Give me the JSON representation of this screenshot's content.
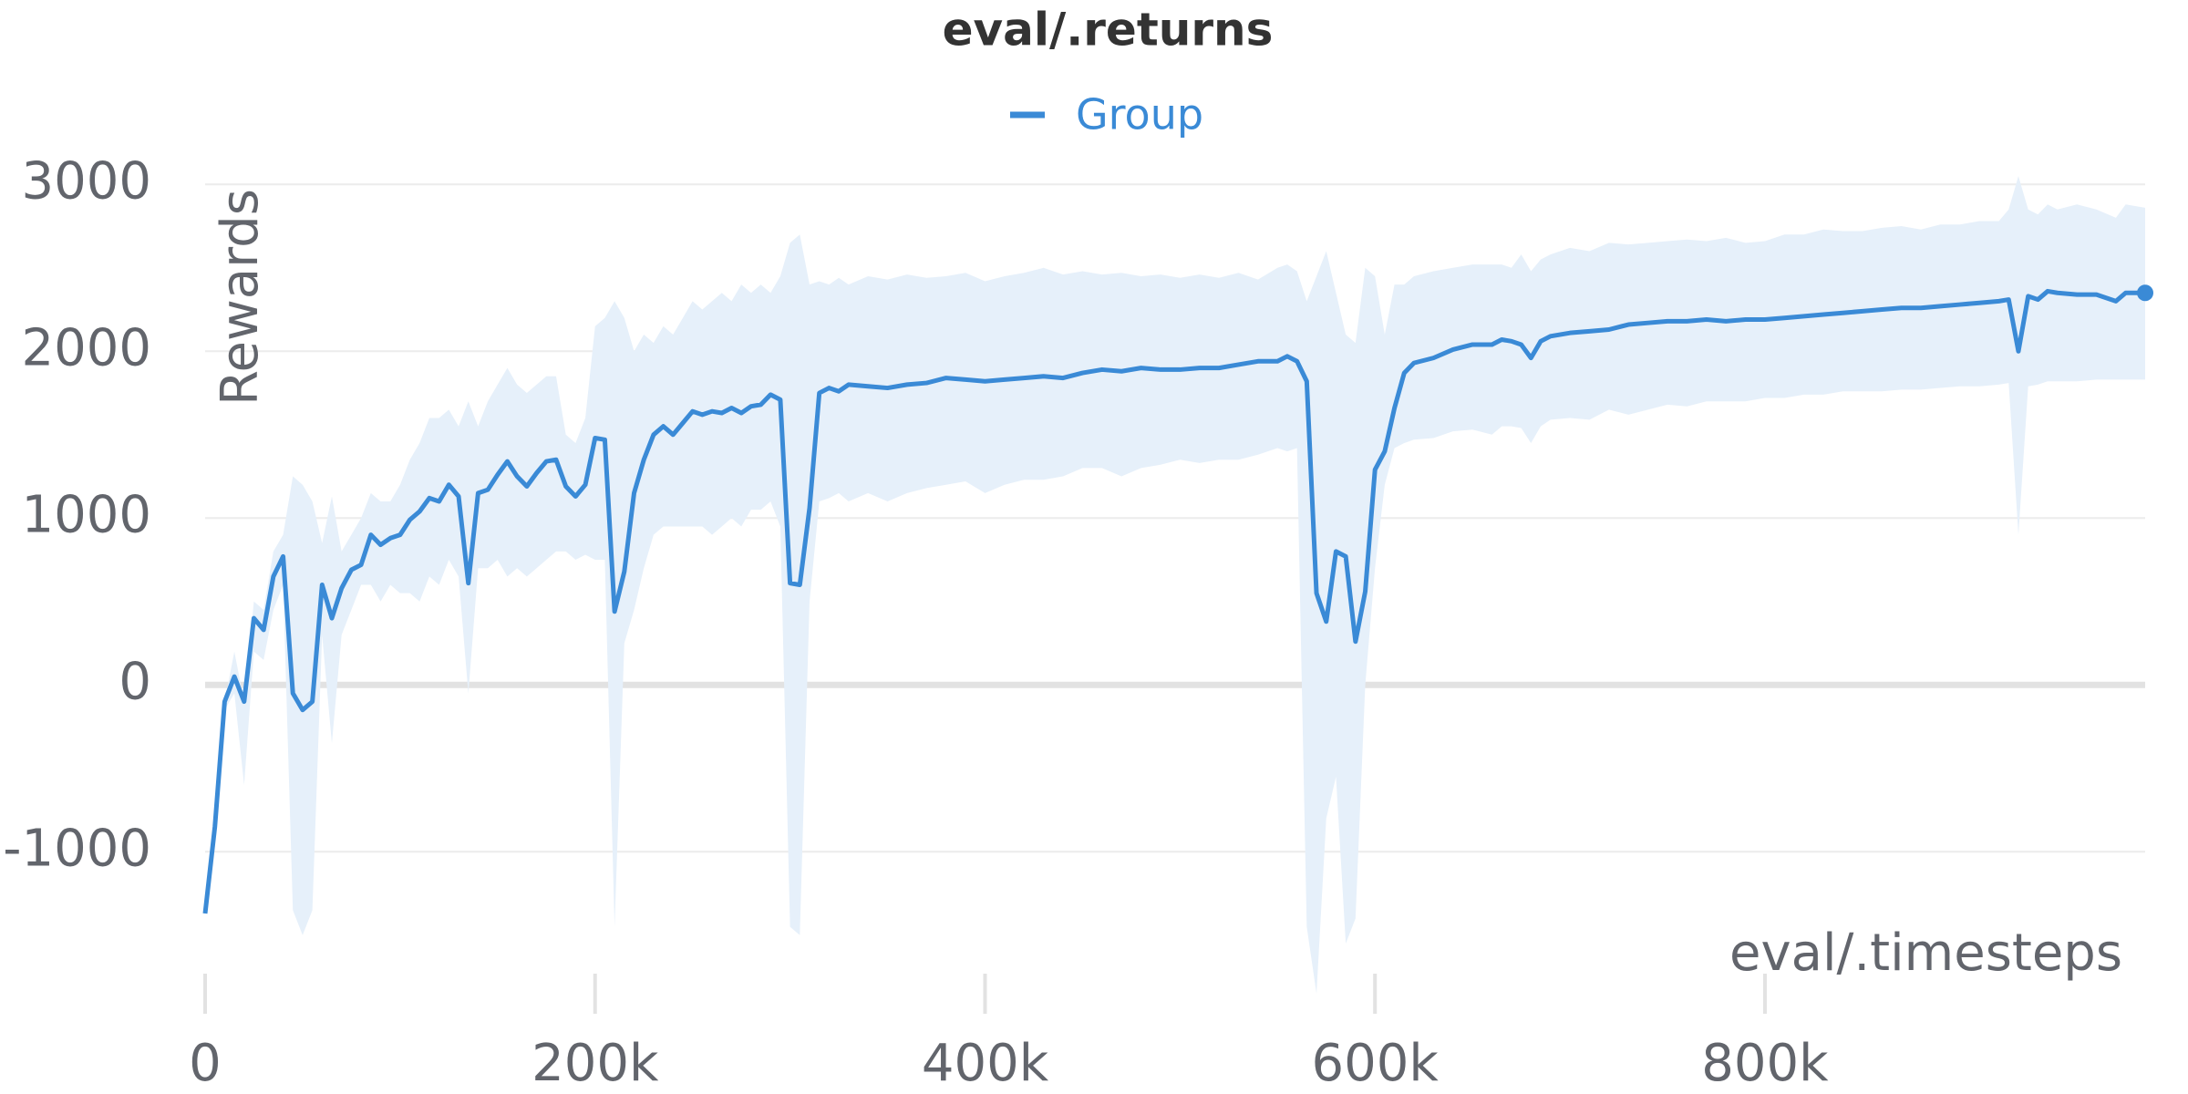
{
  "chart_data": {
    "type": "line",
    "title": "eval/.returns",
    "xlabel": "eval/.timesteps",
    "ylabel": "Rewards",
    "x": [
      0,
      5000,
      10000,
      15000,
      20000,
      25000,
      30000,
      35000,
      40000,
      45000,
      50000,
      55000,
      60000,
      65000,
      70000,
      75000,
      80000,
      85000,
      90000,
      95000,
      100000,
      105000,
      110000,
      115000,
      120000,
      125000,
      130000,
      135000,
      140000,
      145000,
      150000,
      155000,
      160000,
      165000,
      170000,
      175000,
      180000,
      185000,
      190000,
      195000,
      200000,
      205000,
      210000,
      215000,
      220000,
      225000,
      230000,
      235000,
      240000,
      245000,
      250000,
      255000,
      260000,
      265000,
      270000,
      275000,
      280000,
      285000,
      290000,
      295000,
      300000,
      305000,
      310000,
      315000,
      320000,
      325000,
      330000,
      340000,
      350000,
      360000,
      370000,
      380000,
      390000,
      400000,
      410000,
      420000,
      430000,
      440000,
      450000,
      460000,
      470000,
      480000,
      490000,
      500000,
      510000,
      520000,
      530000,
      540000,
      550000,
      555000,
      560000,
      565000,
      570000,
      575000,
      580000,
      585000,
      590000,
      595000,
      600000,
      605000,
      610000,
      615000,
      620000,
      630000,
      640000,
      650000,
      660000,
      665000,
      670000,
      675000,
      680000,
      685000,
      690000,
      700000,
      710000,
      720000,
      730000,
      740000,
      750000,
      760000,
      770000,
      780000,
      790000,
      800000,
      810000,
      820000,
      830000,
      840000,
      850000,
      860000,
      870000,
      880000,
      890000,
      900000,
      910000,
      920000,
      925000,
      930000,
      935000,
      940000,
      945000,
      950000,
      960000,
      970000,
      980000,
      985000,
      995000
    ],
    "series": [
      {
        "name": "Group",
        "color": "#3a8ad6",
        "band_color": "#e6f0fa",
        "values": [
          -1370,
          -850,
          -100,
          50,
          -100,
          400,
          330,
          650,
          770,
          -50,
          -150,
          -100,
          600,
          400,
          580,
          690,
          720,
          900,
          840,
          880,
          900,
          990,
          1040,
          1120,
          1100,
          1200,
          1130,
          610,
          1150,
          1170,
          1260,
          1340,
          1250,
          1190,
          1270,
          1340,
          1350,
          1190,
          1130,
          1200,
          1480,
          1470,
          440,
          680,
          1150,
          1350,
          1500,
          1550,
          1500,
          1570,
          1640,
          1620,
          1640,
          1630,
          1660,
          1630,
          1670,
          1680,
          1740,
          1710,
          610,
          600,
          1060,
          1750,
          1780,
          1760,
          1800,
          1790,
          1780,
          1800,
          1810,
          1840,
          1830,
          1820,
          1830,
          1840,
          1850,
          1840,
          1870,
          1890,
          1880,
          1900,
          1890,
          1890,
          1900,
          1900,
          1920,
          1940,
          1940,
          1970,
          1940,
          1820,
          550,
          380,
          800,
          770,
          260,
          560,
          1290,
          1400,
          1660,
          1870,
          1930,
          1960,
          2010,
          2040,
          2040,
          2070,
          2060,
          2040,
          1960,
          2060,
          2090,
          2110,
          2120,
          2130,
          2160,
          2170,
          2180,
          2180,
          2190,
          2180,
          2190,
          2190,
          2200,
          2210,
          2220,
          2230,
          2240,
          2250,
          2260,
          2260,
          2270,
          2280,
          2290,
          2300,
          2310,
          2000,
          2330,
          2310,
          2360,
          2350,
          2340,
          2340,
          2300,
          2350,
          2350
        ],
        "upper": [
          -1370,
          -850,
          -100,
          200,
          -100,
          500,
          450,
          800,
          900,
          1250,
          1200,
          1100,
          850,
          1130,
          800,
          900,
          1000,
          1150,
          1100,
          1100,
          1200,
          1350,
          1450,
          1600,
          1600,
          1650,
          1550,
          1700,
          1550,
          1700,
          1800,
          1900,
          1800,
          1750,
          1800,
          1850,
          1850,
          1500,
          1450,
          1600,
          2150,
          2200,
          2300,
          2200,
          2000,
          2100,
          2050,
          2150,
          2100,
          2200,
          2300,
          2250,
          2300,
          2350,
          2300,
          2400,
          2350,
          2400,
          2350,
          2450,
          2650,
          2700,
          2400,
          2420,
          2400,
          2440,
          2400,
          2450,
          2430,
          2460,
          2440,
          2450,
          2470,
          2420,
          2450,
          2470,
          2500,
          2460,
          2480,
          2460,
          2470,
          2450,
          2460,
          2440,
          2460,
          2440,
          2470,
          2430,
          2500,
          2520,
          2480,
          2300,
          2450,
          2600,
          2350,
          2100,
          2050,
          2500,
          2450,
          2100,
          2400,
          2400,
          2450,
          2480,
          2500,
          2520,
          2520,
          2520,
          2500,
          2580,
          2480,
          2550,
          2580,
          2620,
          2600,
          2650,
          2640,
          2650,
          2660,
          2670,
          2660,
          2680,
          2650,
          2660,
          2700,
          2700,
          2730,
          2720,
          2720,
          2740,
          2750,
          2730,
          2760,
          2760,
          2780,
          2780,
          2850,
          3050,
          2850,
          2820,
          2880,
          2850,
          2880,
          2850,
          2800,
          2880,
          2860
        ],
        "lower": [
          -1370,
          -850,
          -150,
          -50,
          -600,
          200,
          150,
          450,
          600,
          -1350,
          -1500,
          -1350,
          300,
          -350,
          300,
          450,
          600,
          600,
          500,
          600,
          550,
          550,
          500,
          650,
          600,
          750,
          650,
          -50,
          700,
          700,
          750,
          650,
          700,
          650,
          700,
          750,
          800,
          800,
          750,
          780,
          750,
          750,
          -1450,
          250,
          450,
          700,
          900,
          950,
          950,
          950,
          950,
          950,
          900,
          950,
          1000,
          950,
          1050,
          1050,
          1100,
          950,
          -1450,
          -1500,
          500,
          1100,
          1120,
          1150,
          1100,
          1150,
          1100,
          1150,
          1180,
          1200,
          1220,
          1150,
          1200,
          1230,
          1230,
          1250,
          1300,
          1300,
          1250,
          1300,
          1320,
          1350,
          1330,
          1350,
          1350,
          1380,
          1420,
          1400,
          1420,
          -1450,
          -1850,
          -800,
          -550,
          -1550,
          -1400,
          0,
          700,
          1200,
          1420,
          1450,
          1470,
          1480,
          1520,
          1530,
          1500,
          1550,
          1550,
          1540,
          1450,
          1550,
          1590,
          1600,
          1590,
          1650,
          1620,
          1650,
          1680,
          1670,
          1700,
          1700,
          1700,
          1720,
          1720,
          1740,
          1740,
          1760,
          1760,
          1760,
          1770,
          1770,
          1780,
          1790,
          1790,
          1800,
          1810,
          900,
          1790,
          1800,
          1820,
          1820,
          1820,
          1830,
          1830,
          1830,
          1830
        ]
      }
    ],
    "xlim": [
      0,
      995000
    ],
    "ylim": [
      -1900,
      3100
    ],
    "xticks": [
      0,
      {
        "value": 200000,
        "label": "200k"
      },
      {
        "value": 400000,
        "label": "400k"
      },
      {
        "value": 600000,
        "label": "600k"
      },
      {
        "value": 800000,
        "label": "800k"
      }
    ],
    "yticks": [
      -1000,
      0,
      1000,
      2000,
      3000
    ],
    "grid": true
  }
}
